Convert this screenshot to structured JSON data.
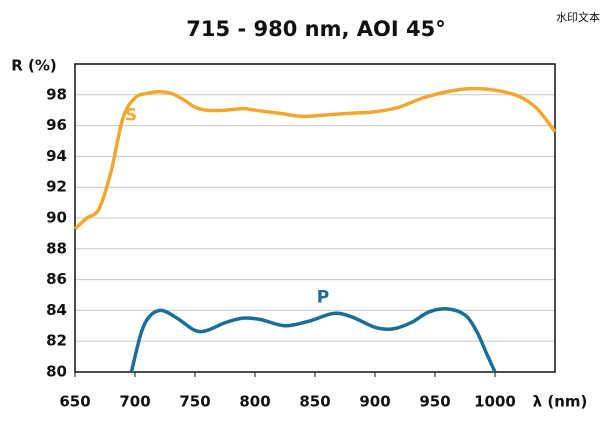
{
  "chart_data": {
    "type": "line",
    "title": "715 - 980 nm, AOI 45°",
    "watermark": "水印文本",
    "ylabel": "R (%)",
    "xlabel": "λ (nm)",
    "xlim": [
      650,
      1050
    ],
    "xticks": [
      650,
      700,
      750,
      800,
      850,
      900,
      950,
      1000
    ],
    "ylim": [
      80,
      100
    ],
    "yticks": [
      80,
      82,
      84,
      86,
      88,
      90,
      92,
      94,
      96,
      98
    ],
    "grid": true,
    "series": [
      {
        "name": "S",
        "color": "#f0a830",
        "x": [
          650,
          660,
          670,
          680,
          690,
          700,
          710,
          720,
          730,
          740,
          750,
          760,
          775,
          790,
          800,
          820,
          840,
          860,
          880,
          900,
          920,
          940,
          960,
          980,
          1000,
          1020,
          1035,
          1050
        ],
        "values": [
          89.3,
          90,
          90.6,
          93,
          96.5,
          97.8,
          98.1,
          98.2,
          98.1,
          97.7,
          97.2,
          97.0,
          97.0,
          97.1,
          97.0,
          96.8,
          96.6,
          96.7,
          96.8,
          96.9,
          97.2,
          97.8,
          98.2,
          98.4,
          98.3,
          97.9,
          97.1,
          95.6
        ]
      },
      {
        "name": "P",
        "color": "#1a6e98",
        "x": [
          697,
          705,
          712,
          722,
          735,
          750,
          760,
          775,
          790,
          805,
          825,
          845,
          865,
          880,
          900,
          915,
          930,
          945,
          960,
          975,
          985,
          993,
          1000
        ],
        "values": [
          80,
          82.5,
          83.6,
          84.0,
          83.5,
          82.7,
          82.7,
          83.2,
          83.5,
          83.4,
          83.0,
          83.3,
          83.8,
          83.6,
          82.9,
          82.8,
          83.2,
          83.9,
          84.1,
          83.7,
          82.6,
          81.2,
          80
        ]
      }
    ]
  }
}
